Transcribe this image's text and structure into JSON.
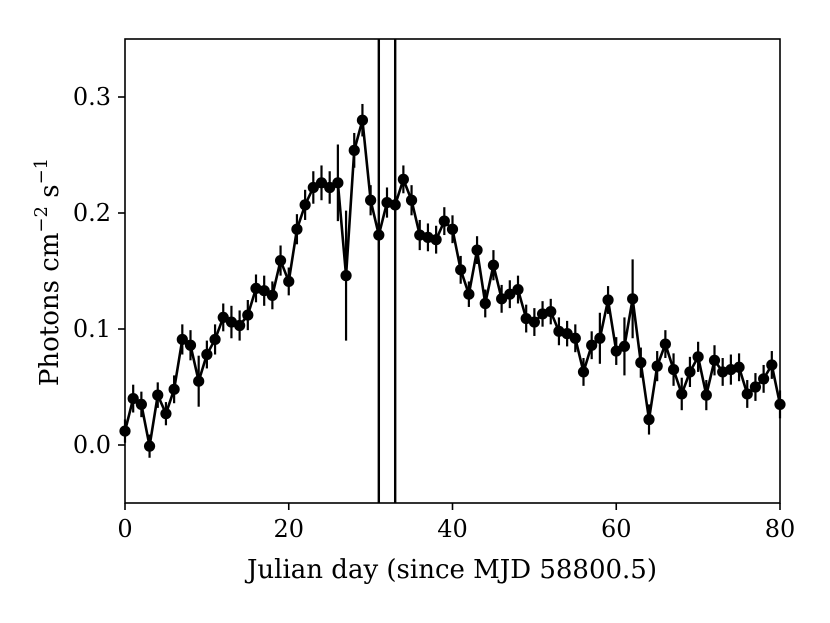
{
  "chart_data": {
    "type": "scatter",
    "title": "",
    "xlabel": "Julian day (since MJD 58800.5)",
    "ylabel_parts": [
      "Photons cm",
      "−2",
      " s",
      "−1"
    ],
    "xlim": [
      0,
      80
    ],
    "ylim": [
      -0.05,
      0.35
    ],
    "xticks": [
      0,
      20,
      40,
      60,
      80
    ],
    "yticks": [
      0.0,
      0.1,
      0.2,
      0.3
    ],
    "xtick_labels": [
      "0",
      "20",
      "40",
      "60",
      "80"
    ],
    "ytick_labels": [
      "0.0",
      "0.1",
      "0.2",
      "0.3"
    ],
    "grid": false,
    "vertical_lines": [
      31,
      33
    ],
    "series": [
      {
        "color": "#000000",
        "marker": "circle",
        "connected": true,
        "x": [
          0,
          1,
          2,
          3,
          4,
          5,
          6,
          7,
          8,
          9,
          10,
          11,
          12,
          13,
          14,
          15,
          16,
          17,
          18,
          19,
          20,
          21,
          22,
          23,
          24,
          25,
          26,
          27,
          28,
          29,
          30,
          31,
          32,
          33,
          34,
          35,
          36,
          37,
          38,
          39,
          40,
          41,
          42,
          43,
          44,
          45,
          46,
          47,
          48,
          49,
          50,
          51,
          52,
          53,
          54,
          55,
          56,
          57,
          58,
          59,
          60,
          61,
          62,
          63,
          64,
          65,
          66,
          67,
          68,
          69,
          70,
          71,
          72,
          73,
          74,
          75,
          76,
          77,
          78,
          79,
          80
        ],
        "y": [
          0.012,
          0.04,
          0.035,
          -0.001,
          0.043,
          0.027,
          0.048,
          0.091,
          0.086,
          0.055,
          0.078,
          0.091,
          0.11,
          0.106,
          0.103,
          0.112,
          0.135,
          0.133,
          0.129,
          0.159,
          0.141,
          0.186,
          0.207,
          0.222,
          0.226,
          0.222,
          0.226,
          0.146,
          0.254,
          0.28,
          0.211,
          0.181,
          0.209,
          0.207,
          0.229,
          0.211,
          0.181,
          0.179,
          0.177,
          0.193,
          0.186,
          0.151,
          0.13,
          0.168,
          0.122,
          0.155,
          0.126,
          0.13,
          0.134,
          0.109,
          0.106,
          0.113,
          0.115,
          0.098,
          0.096,
          0.092,
          0.063,
          0.086,
          0.092,
          0.125,
          0.081,
          0.085,
          0.126,
          0.071,
          0.022,
          0.068,
          0.087,
          0.065,
          0.044,
          0.063,
          0.076,
          0.043,
          0.073,
          0.063,
          0.065,
          0.067,
          0.044,
          0.05,
          0.057,
          0.069,
          0.035
        ],
        "err": [
          0.01,
          0.012,
          0.011,
          0.01,
          0.011,
          0.01,
          0.012,
          0.013,
          0.013,
          0.022,
          0.012,
          0.013,
          0.012,
          0.014,
          0.013,
          0.013,
          0.012,
          0.013,
          0.012,
          0.013,
          0.012,
          0.013,
          0.013,
          0.014,
          0.015,
          0.014,
          0.033,
          0.056,
          0.015,
          0.014,
          0.013,
          0.013,
          0.013,
          0.013,
          0.012,
          0.013,
          0.013,
          0.012,
          0.012,
          0.012,
          0.012,
          0.012,
          0.011,
          0.012,
          0.012,
          0.013,
          0.012,
          0.012,
          0.012,
          0.012,
          0.012,
          0.011,
          0.011,
          0.012,
          0.011,
          0.012,
          0.012,
          0.012,
          0.022,
          0.012,
          0.012,
          0.025,
          0.034,
          0.013,
          0.013,
          0.013,
          0.012,
          0.014,
          0.014,
          0.013,
          0.013,
          0.013,
          0.013,
          0.012,
          0.013,
          0.012,
          0.012,
          0.012,
          0.012,
          0.012,
          0.012
        ]
      }
    ]
  }
}
